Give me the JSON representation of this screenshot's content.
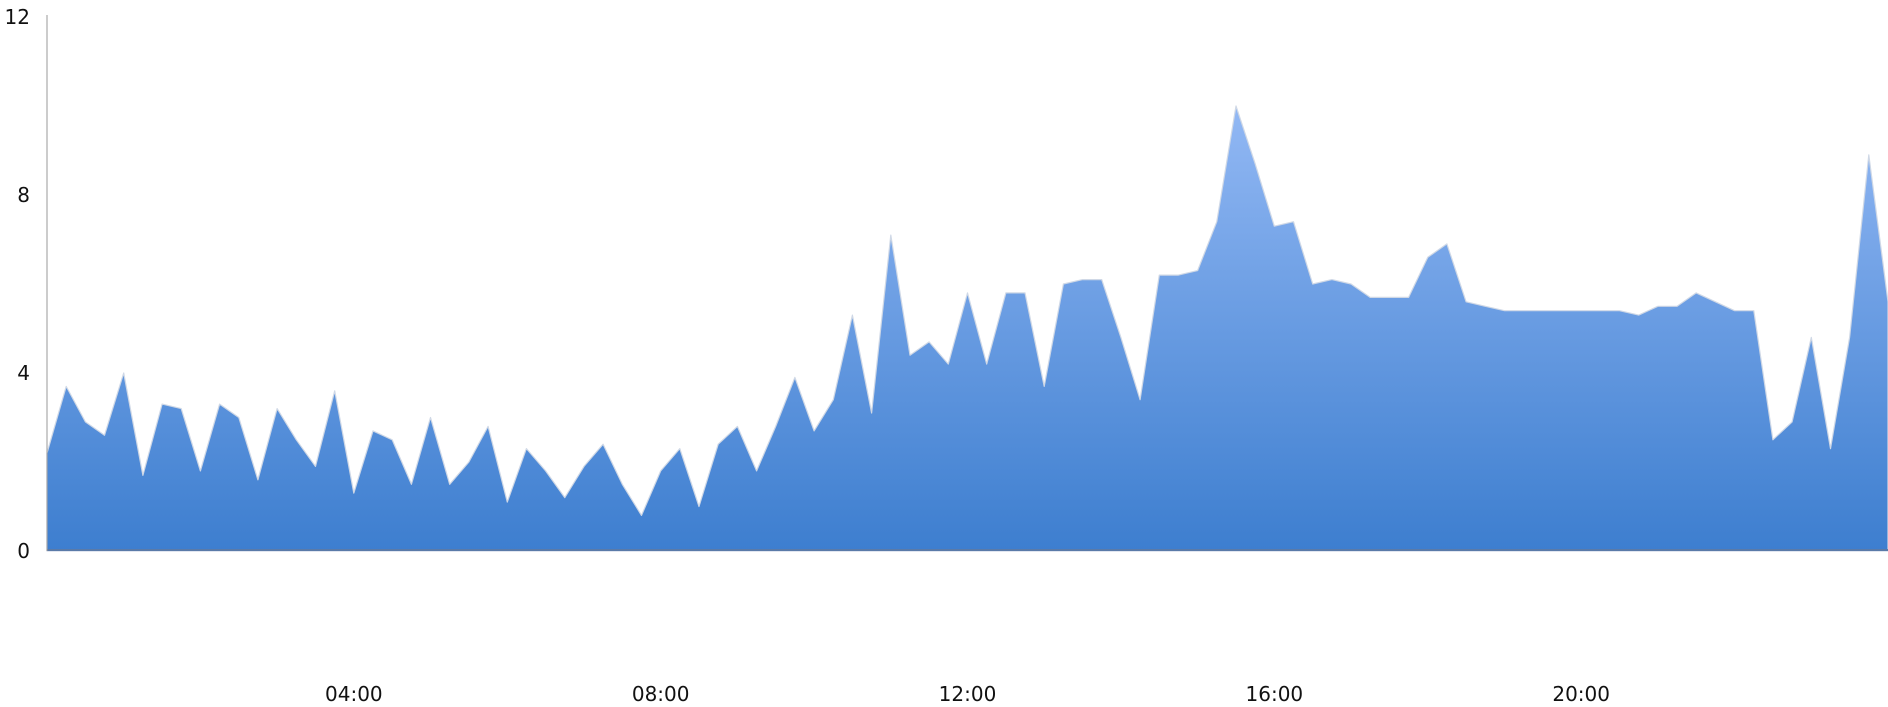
{
  "colors": {
    "fill_top": "#92b8f4",
    "fill_bottom": "#3d7ecf",
    "axis": "#9a9a9a",
    "outline": "#cfd8e6",
    "baseline": "#5a7aa8"
  },
  "chart_data": {
    "type": "area",
    "title": "",
    "xlabel": "",
    "ylabel": "",
    "xlim": [
      0,
      24
    ],
    "ylim": [
      0,
      12
    ],
    "grid": false,
    "legend": "none",
    "y_ticks": [
      {
        "value": 0,
        "label": "0"
      },
      {
        "value": 4,
        "label": "4"
      },
      {
        "value": 8,
        "label": "8"
      },
      {
        "value": 12,
        "label": "12"
      }
    ],
    "x_ticks": [
      {
        "value": 4,
        "label": "04:00"
      },
      {
        "value": 8,
        "label": "08:00"
      },
      {
        "value": 12,
        "label": "12:00"
      },
      {
        "value": 16,
        "label": "16:00"
      },
      {
        "value": 20,
        "label": "20:00"
      }
    ],
    "series": [
      {
        "x": [
          0.0,
          0.25,
          0.5,
          0.75,
          1.0,
          1.25,
          1.5,
          1.75,
          2.0,
          2.25,
          2.5,
          2.75,
          3.0,
          3.25,
          3.5,
          3.75,
          4.0,
          4.25,
          4.5,
          4.75,
          5.0,
          5.25,
          5.5,
          5.75,
          6.0,
          6.25,
          6.5,
          6.75,
          7.0,
          7.25,
          7.5,
          7.75,
          8.0,
          8.25,
          8.5,
          8.75,
          9.0,
          9.25,
          9.5,
          9.75,
          10.0,
          10.25,
          10.5,
          10.75,
          11.0,
          11.25,
          11.5,
          11.75,
          12.0,
          12.25,
          12.5,
          12.75,
          13.0,
          13.25,
          13.5,
          13.75,
          14.0,
          14.25,
          14.5,
          14.75,
          15.0,
          15.25,
          15.5,
          15.75,
          16.0,
          16.25,
          16.5,
          16.75,
          17.0,
          17.25,
          17.5,
          17.75,
          18.0,
          18.25,
          18.5,
          18.75,
          19.0,
          19.25,
          19.5,
          19.75,
          20.0,
          20.25,
          20.5,
          20.75,
          21.0,
          21.25,
          21.5,
          21.75,
          22.0,
          22.25,
          22.5,
          22.75,
          23.0,
          23.25,
          23.5,
          23.75,
          24.0
        ],
        "values": [
          2.2,
          3.7,
          2.9,
          2.6,
          4.0,
          1.7,
          3.3,
          3.2,
          1.8,
          3.3,
          3.0,
          1.6,
          3.2,
          2.5,
          1.9,
          3.6,
          1.3,
          2.7,
          2.5,
          1.5,
          3.0,
          1.5,
          2.0,
          2.8,
          1.1,
          2.3,
          1.8,
          1.2,
          1.9,
          2.4,
          1.5,
          0.8,
          1.8,
          2.3,
          1.0,
          2.4,
          2.8,
          1.8,
          2.8,
          3.9,
          2.7,
          3.4,
          5.3,
          3.1,
          7.1,
          4.4,
          4.7,
          4.2,
          5.8,
          4.2,
          5.8,
          5.8,
          3.7,
          6.0,
          6.1,
          6.1,
          4.8,
          3.4,
          6.2,
          6.2,
          6.3,
          7.4,
          10.0,
          8.7,
          7.3,
          7.4,
          6.0,
          6.1,
          6.0,
          5.7,
          5.7,
          5.7,
          6.6,
          6.9,
          5.6,
          5.5,
          5.4,
          5.4,
          5.4,
          5.4,
          5.4,
          5.4,
          5.4,
          5.3,
          5.5,
          5.5,
          5.8,
          5.6,
          5.4,
          5.4,
          2.5,
          2.9,
          4.8,
          2.3,
          4.8,
          8.9,
          5.6
        ]
      }
    ]
  }
}
